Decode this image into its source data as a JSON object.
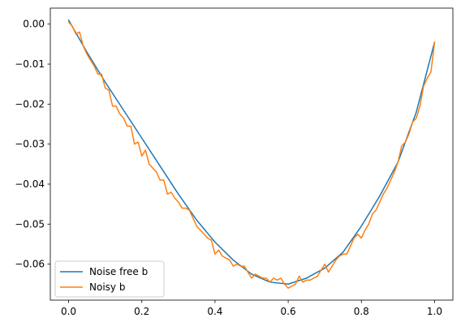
{
  "chart_data": {
    "type": "line",
    "title": "",
    "xlabel": "",
    "ylabel": "",
    "xlim": [
      -0.05,
      1.05
    ],
    "ylim": [
      -0.069,
      0.004
    ],
    "xticks": [
      0.0,
      0.2,
      0.4,
      0.6,
      0.8,
      1.0
    ],
    "xtick_labels": [
      "0.0",
      "0.2",
      "0.4",
      "0.6",
      "0.8",
      "1.0"
    ],
    "yticks": [
      0.0,
      -0.01,
      -0.02,
      -0.03,
      -0.04,
      -0.05,
      -0.06
    ],
    "ytick_labels": [
      "0.00",
      "−0.01",
      "−0.02",
      "−0.03",
      "−0.04",
      "−0.05",
      "−0.06"
    ],
    "grid": false,
    "legend_position": "lower-left",
    "series": [
      {
        "name": "Noise free b",
        "color": "#1f77b4",
        "x": [
          0.0,
          0.05,
          0.1,
          0.15,
          0.2,
          0.25,
          0.3,
          0.35,
          0.4,
          0.45,
          0.5,
          0.55,
          0.6,
          0.65,
          0.7,
          0.75,
          0.8,
          0.85,
          0.9,
          0.95,
          1.0
        ],
        "y": [
          0.001,
          -0.007,
          -0.0145,
          -0.0215,
          -0.0285,
          -0.0355,
          -0.0425,
          -0.049,
          -0.0545,
          -0.059,
          -0.0625,
          -0.0645,
          -0.065,
          -0.0635,
          -0.061,
          -0.057,
          -0.0505,
          -0.043,
          -0.0345,
          -0.022,
          -0.0045
        ]
      },
      {
        "name": "Noisy b",
        "color": "#ff7f0e",
        "x": [
          0.0,
          0.01,
          0.02,
          0.03,
          0.04,
          0.05,
          0.06,
          0.07,
          0.08,
          0.09,
          0.1,
          0.11,
          0.12,
          0.13,
          0.14,
          0.15,
          0.16,
          0.17,
          0.18,
          0.19,
          0.2,
          0.21,
          0.22,
          0.23,
          0.24,
          0.25,
          0.26,
          0.27,
          0.28,
          0.29,
          0.3,
          0.31,
          0.32,
          0.33,
          0.34,
          0.35,
          0.36,
          0.37,
          0.38,
          0.39,
          0.4,
          0.41,
          0.42,
          0.43,
          0.44,
          0.45,
          0.46,
          0.47,
          0.48,
          0.49,
          0.5,
          0.51,
          0.52,
          0.53,
          0.54,
          0.55,
          0.56,
          0.57,
          0.58,
          0.59,
          0.6,
          0.61,
          0.62,
          0.63,
          0.64,
          0.65,
          0.66,
          0.67,
          0.68,
          0.69,
          0.7,
          0.71,
          0.72,
          0.73,
          0.74,
          0.75,
          0.76,
          0.77,
          0.78,
          0.79,
          0.8,
          0.81,
          0.82,
          0.83,
          0.84,
          0.85,
          0.86,
          0.87,
          0.88,
          0.89,
          0.9,
          0.91,
          0.92,
          0.93,
          0.94,
          0.95,
          0.96,
          0.97,
          0.98,
          0.99,
          1.0
        ],
        "y": [
          0.0005,
          -0.0005,
          -0.0025,
          -0.002,
          -0.0055,
          -0.0075,
          -0.009,
          -0.0105,
          -0.0125,
          -0.0125,
          -0.016,
          -0.0165,
          -0.0205,
          -0.0205,
          -0.0225,
          -0.0235,
          -0.0255,
          -0.0255,
          -0.03,
          -0.0295,
          -0.033,
          -0.0315,
          -0.035,
          -0.036,
          -0.037,
          -0.039,
          -0.039,
          -0.0425,
          -0.042,
          -0.0435,
          -0.0445,
          -0.046,
          -0.046,
          -0.0465,
          -0.0485,
          -0.0505,
          -0.0515,
          -0.0525,
          -0.0535,
          -0.054,
          -0.0575,
          -0.0565,
          -0.058,
          -0.0585,
          -0.059,
          -0.0605,
          -0.06,
          -0.0605,
          -0.0605,
          -0.062,
          -0.0635,
          -0.0625,
          -0.063,
          -0.0635,
          -0.0635,
          -0.0645,
          -0.0635,
          -0.064,
          -0.0635,
          -0.065,
          -0.066,
          -0.0655,
          -0.065,
          -0.063,
          -0.0645,
          -0.064,
          -0.064,
          -0.0635,
          -0.063,
          -0.0615,
          -0.06,
          -0.062,
          -0.0605,
          -0.059,
          -0.058,
          -0.0575,
          -0.0575,
          -0.0555,
          -0.0535,
          -0.0525,
          -0.0535,
          -0.0515,
          -0.05,
          -0.0475,
          -0.0465,
          -0.0445,
          -0.0425,
          -0.041,
          -0.039,
          -0.037,
          -0.0345,
          -0.0305,
          -0.0295,
          -0.0275,
          -0.0245,
          -0.0235,
          -0.0205,
          -0.0155,
          -0.0135,
          -0.012,
          -0.0045
        ]
      }
    ]
  }
}
